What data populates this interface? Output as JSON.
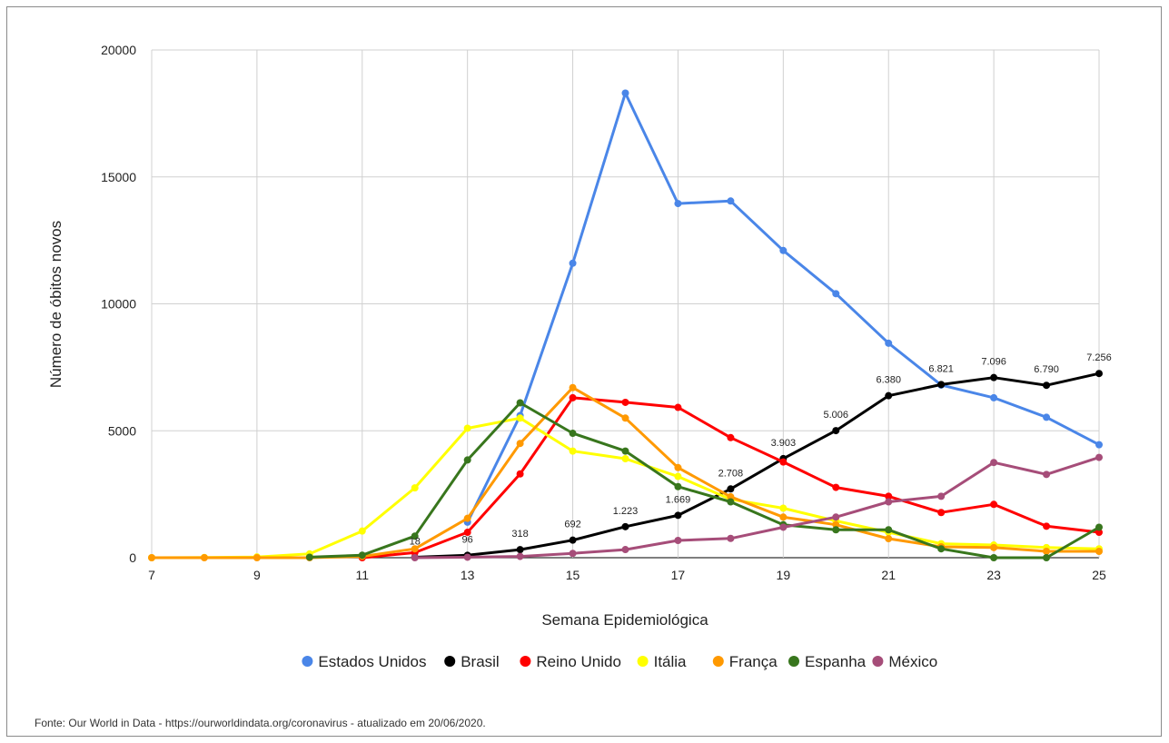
{
  "chart_data": {
    "type": "line",
    "title": "",
    "xlabel": "Semana Epidemiológica",
    "ylabel": "Número de óbitos novos",
    "x": [
      7,
      8,
      9,
      10,
      11,
      12,
      13,
      14,
      15,
      16,
      17,
      18,
      19,
      20,
      21,
      22,
      23,
      24,
      25
    ],
    "x_ticks": [
      "7",
      "9",
      "11",
      "13",
      "15",
      "17",
      "19",
      "21",
      "23",
      "25"
    ],
    "y_ticks": [
      "0",
      "5000",
      "10000",
      "15000",
      "20000"
    ],
    "xlim": [
      7,
      25
    ],
    "ylim": [
      0,
      20000
    ],
    "grid": true,
    "legend_position": "bottom",
    "series": [
      {
        "name": "Estados Unidos",
        "color": "#4a86e8",
        "x": [
          13,
          14,
          15,
          16,
          17,
          18,
          19,
          20,
          21,
          22,
          23,
          24,
          25
        ],
        "values": [
          1400,
          5600,
          11600,
          18300,
          13950,
          14050,
          12100,
          10400,
          8450,
          6800,
          6300,
          5530,
          4450
        ]
      },
      {
        "name": "Brasil",
        "color": "#000000",
        "x": [
          12,
          13,
          14,
          15,
          16,
          17,
          18,
          19,
          20,
          21,
          22,
          23,
          24,
          25
        ],
        "values": [
          18,
          96,
          318,
          692,
          1223,
          1669,
          2708,
          3903,
          5006,
          6380,
          6821,
          7096,
          6790,
          7256
        ]
      },
      {
        "name": "Reino Unido",
        "color": "#ff0000",
        "x": [
          11,
          12,
          13,
          14,
          15,
          16,
          17,
          18,
          19,
          20,
          21,
          22,
          23,
          24,
          25
        ],
        "values": [
          0,
          200,
          1000,
          3300,
          6300,
          6120,
          5920,
          4730,
          3770,
          2770,
          2420,
          1780,
          2100,
          1240,
          1000
        ]
      },
      {
        "name": "Itália",
        "color": "#ffff00",
        "x": [
          7,
          8,
          9,
          10,
          11,
          12,
          13,
          14,
          15,
          16,
          17,
          18,
          19,
          20,
          21,
          22,
          23,
          24,
          25
        ],
        "values": [
          0,
          10,
          30,
          150,
          1050,
          2750,
          5100,
          5500,
          4200,
          3900,
          3200,
          2300,
          1950,
          1450,
          1000,
          550,
          500,
          400,
          350
        ]
      },
      {
        "name": "França",
        "color": "#ff9900",
        "x": [
          7,
          8,
          9,
          10,
          11,
          12,
          13,
          14,
          15,
          16,
          17,
          18,
          19,
          20,
          21,
          22,
          23,
          24,
          25
        ],
        "values": [
          0,
          0,
          0,
          0,
          50,
          350,
          1550,
          4500,
          6700,
          5500,
          3550,
          2400,
          1600,
          1300,
          750,
          430,
          400,
          250,
          250
        ]
      },
      {
        "name": "Espanha",
        "color": "#38761d",
        "x": [
          10,
          11,
          12,
          13,
          14,
          15,
          16,
          17,
          18,
          19,
          20,
          21,
          22,
          23,
          24,
          25
        ],
        "values": [
          20,
          100,
          850,
          3850,
          6100,
          4900,
          4200,
          2800,
          2200,
          1300,
          1100,
          1100,
          350,
          0,
          0,
          1200
        ]
      },
      {
        "name": "México",
        "color": "#a64d79",
        "x": [
          12,
          13,
          14,
          15,
          16,
          17,
          18,
          19,
          20,
          21,
          22,
          23,
          24,
          25
        ],
        "values": [
          0,
          20,
          50,
          170,
          320,
          680,
          760,
          1200,
          1600,
          2200,
          2420,
          3750,
          3280,
          3950
        ]
      }
    ],
    "data_labels": [
      {
        "x": 12,
        "y": 18,
        "text": "18"
      },
      {
        "x": 13,
        "y": 96,
        "text": "96"
      },
      {
        "x": 14,
        "y": 318,
        "text": "318"
      },
      {
        "x": 15,
        "y": 692,
        "text": "692"
      },
      {
        "x": 16,
        "y": 1223,
        "text": "1.223"
      },
      {
        "x": 17,
        "y": 1669,
        "text": "1.669"
      },
      {
        "x": 18,
        "y": 2708,
        "text": "2.708"
      },
      {
        "x": 19,
        "y": 3903,
        "text": "3.903"
      },
      {
        "x": 20,
        "y": 5006,
        "text": "5.006"
      },
      {
        "x": 21,
        "y": 6380,
        "text": "6.380"
      },
      {
        "x": 22,
        "y": 6821,
        "text": "6.821"
      },
      {
        "x": 23,
        "y": 7096,
        "text": "7.096"
      },
      {
        "x": 24,
        "y": 6790,
        "text": "6.790"
      },
      {
        "x": 25,
        "y": 7256,
        "text": "7.256"
      }
    ]
  },
  "source_note": "Fonte: Our World in Data - https://ourworldindata.org/coronavirus - atualizado em 20/06/2020."
}
